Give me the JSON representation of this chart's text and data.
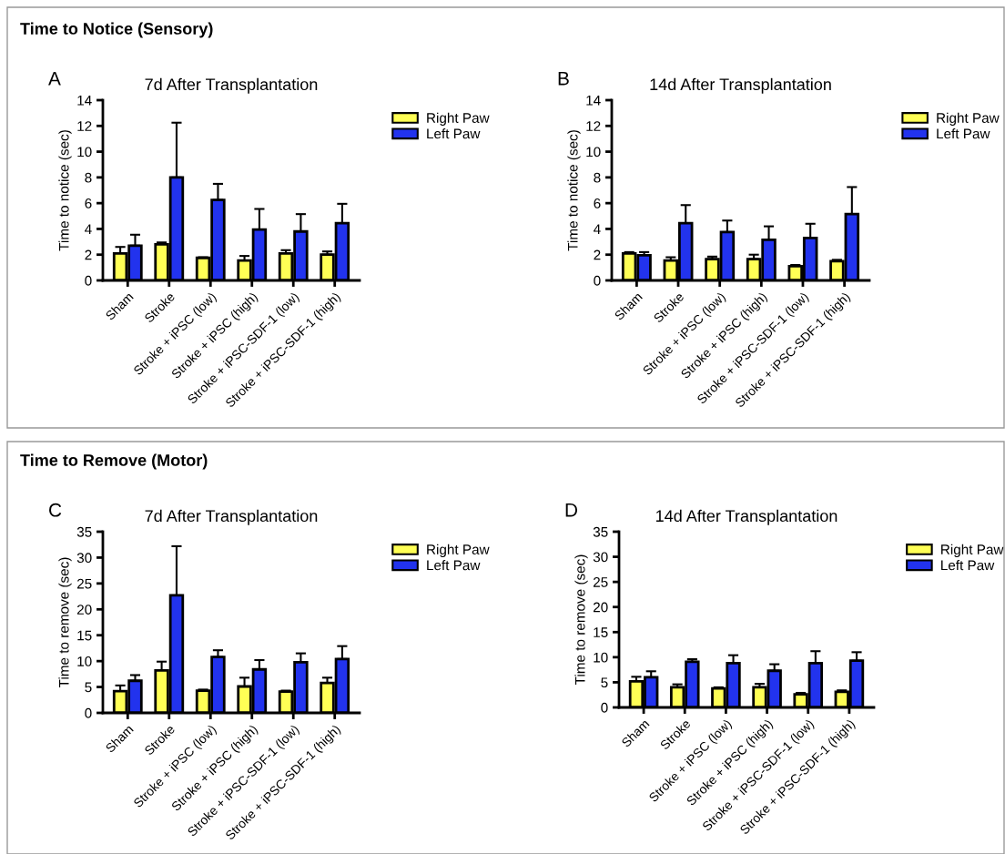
{
  "chart_data": [
    {
      "type": "bar",
      "title": "7d After Transplantation",
      "ylabel": "Time to notice (sec)",
      "annotations": [
        "Time to Notice (Sensory)",
        "A"
      ],
      "categories": [
        "Sham",
        "Stroke",
        "Stroke + iPSC (low)",
        "Stroke + iPSC (high)",
        "Stroke + iPSC-SDF-1 (low)",
        "Stroke + iPSC-SDF-1 (high)"
      ],
      "series": [
        {
          "name": "Right Paw",
          "color": "#ffff55",
          "values": [
            2.1,
            2.8,
            1.75,
            1.55,
            2.1,
            2.0
          ],
          "errors": [
            [
              2.1,
              2.6
            ],
            [
              2.8,
              2.95
            ],
            [
              1.75,
              1.8
            ],
            [
              1.55,
              1.9
            ],
            [
              2.1,
              2.35
            ],
            [
              2.0,
              2.25
            ]
          ]
        },
        {
          "name": "Left Paw",
          "color": "#2233ee",
          "values": [
            2.7,
            8.0,
            6.25,
            3.95,
            3.8,
            4.45
          ],
          "errors": [
            [
              2.7,
              3.55
            ],
            [
              8.0,
              12.25
            ],
            [
              6.25,
              7.5
            ],
            [
              3.95,
              5.55
            ],
            [
              3.8,
              5.15
            ],
            [
              4.45,
              5.95
            ]
          ]
        }
      ],
      "ylim": [
        0,
        14
      ],
      "yticks": [
        0,
        2,
        4,
        6,
        8,
        10,
        12,
        14
      ],
      "grid": false,
      "legend": "right"
    },
    {
      "type": "bar",
      "title": "14d After Transplantation",
      "ylabel": "Time to notice (sec)",
      "annotations": [
        "B"
      ],
      "categories": [
        "Sham",
        "Stroke",
        "Stroke + iPSC (low)",
        "Stroke + iPSC (high)",
        "Stroke + iPSC-SDF-1 (low)",
        "Stroke + iPSC-SDF-1 (high)"
      ],
      "series": [
        {
          "name": "Right Paw",
          "color": "#ffff55",
          "values": [
            2.1,
            1.55,
            1.65,
            1.65,
            1.1,
            1.5
          ],
          "errors": [
            [
              2.1,
              2.2
            ],
            [
              1.55,
              1.8
            ],
            [
              1.65,
              1.85
            ],
            [
              1.65,
              2.0
            ],
            [
              1.1,
              1.2
            ],
            [
              1.5,
              1.6
            ]
          ]
        },
        {
          "name": "Left Paw",
          "color": "#2233ee",
          "values": [
            1.95,
            4.45,
            3.75,
            3.15,
            3.3,
            5.15
          ],
          "errors": [
            [
              1.95,
              2.2
            ],
            [
              4.45,
              5.85
            ],
            [
              3.75,
              4.65
            ],
            [
              3.15,
              4.2
            ],
            [
              3.3,
              4.4
            ],
            [
              5.15,
              7.25
            ]
          ]
        }
      ],
      "ylim": [
        0,
        14
      ],
      "yticks": [
        0,
        2,
        4,
        6,
        8,
        10,
        12,
        14
      ],
      "grid": false,
      "legend": "right"
    },
    {
      "type": "bar",
      "title": "7d After Transplantation",
      "ylabel": "Time to remove (sec)",
      "annotations": [
        "Time to Remove (Motor)",
        "C"
      ],
      "categories": [
        "Sham",
        "Stroke",
        "Stroke + iPSC (low)",
        "Stroke + iPSC (high)",
        "Stroke + iPSC-SDF-1 (low)",
        "Stroke + iPSC-SDF-1 (high)"
      ],
      "series": [
        {
          "name": "Right Paw",
          "color": "#ffff55",
          "values": [
            4.2,
            8.2,
            4.3,
            5.1,
            4.1,
            5.8
          ],
          "errors": [
            [
              4.2,
              5.3
            ],
            [
              8.2,
              9.9
            ],
            [
              4.3,
              4.5
            ],
            [
              5.1,
              6.8
            ],
            [
              4.1,
              4.3
            ],
            [
              5.8,
              6.8
            ]
          ]
        },
        {
          "name": "Left Paw",
          "color": "#2233ee",
          "values": [
            6.2,
            22.7,
            10.8,
            8.4,
            9.8,
            10.4
          ],
          "errors": [
            [
              6.2,
              7.3
            ],
            [
              22.7,
              32.2
            ],
            [
              10.8,
              12.1
            ],
            [
              8.4,
              10.2
            ],
            [
              9.8,
              11.5
            ],
            [
              10.4,
              12.9
            ]
          ]
        }
      ],
      "ylim": [
        0,
        35
      ],
      "yticks": [
        0,
        5,
        10,
        15,
        20,
        25,
        30,
        35
      ],
      "grid": false,
      "legend": "right"
    },
    {
      "type": "bar",
      "title": "14d After Transplantation",
      "ylabel": "Time to remove (sec)",
      "annotations": [
        "D"
      ],
      "categories": [
        "Sham",
        "Stroke",
        "Stroke + iPSC (low)",
        "Stroke + iPSC (high)",
        "Stroke + iPSC-SDF-1 (low)",
        "Stroke + iPSC-SDF-1 (high)"
      ],
      "series": [
        {
          "name": "Right Paw",
          "color": "#ffff55",
          "values": [
            5.2,
            4.0,
            3.8,
            4.0,
            2.6,
            3.1
          ],
          "errors": [
            [
              5.2,
              6.1
            ],
            [
              4.0,
              4.6
            ],
            [
              3.8,
              4.0
            ],
            [
              4.0,
              4.7
            ],
            [
              2.6,
              2.9
            ],
            [
              3.1,
              3.4
            ]
          ]
        },
        {
          "name": "Left Paw",
          "color": "#2233ee",
          "values": [
            6.0,
            9.1,
            8.8,
            7.3,
            8.8,
            9.3
          ],
          "errors": [
            [
              6.0,
              7.2
            ],
            [
              9.1,
              9.6
            ],
            [
              8.8,
              10.4
            ],
            [
              7.3,
              8.6
            ],
            [
              8.8,
              11.2
            ],
            [
              9.3,
              11.0
            ]
          ]
        }
      ],
      "ylim": [
        0,
        35
      ],
      "yticks": [
        0,
        5,
        10,
        15,
        20,
        25,
        30,
        35
      ],
      "grid": false,
      "legend": "right"
    }
  ]
}
